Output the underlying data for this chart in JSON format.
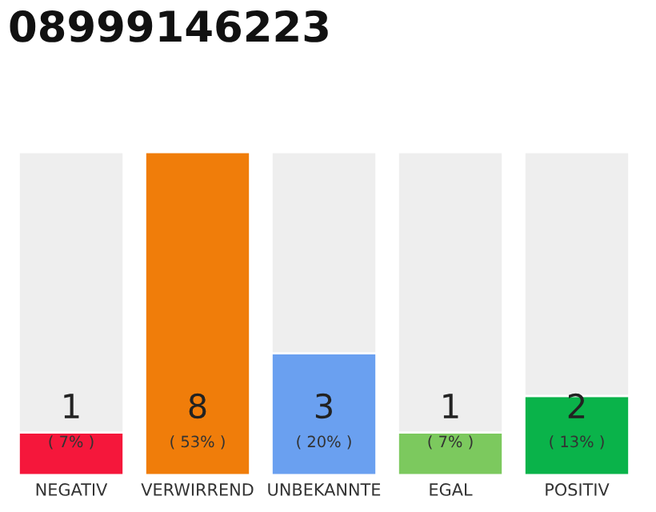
{
  "chart_data": {
    "type": "bar",
    "title": "08999146223",
    "categories": [
      "NEGATIV",
      "VERWIRREND",
      "UNBEKANNTE",
      "EGAL",
      "POSITIV"
    ],
    "stacked": true,
    "ylim": [
      0,
      53
    ],
    "tick_labels": "x",
    "legend": false,
    "series": [
      {
        "colors": [
          "#f5173b",
          "#f07d0a",
          "#6aa0f0",
          "#7cc95e",
          "#0ab34a"
        ],
        "values": [
          7,
          53,
          20,
          7,
          13
        ],
        "value_labels": [
          "1\n( 7% )",
          "8\n( 53% )",
          "3\n( 20% )",
          "1\n( 7% )",
          "2\n( 13% )"
        ]
      },
      {
        "color": "#eeeeee",
        "values": [
          46,
          null,
          33,
          46,
          40
        ]
      }
    ]
  }
}
